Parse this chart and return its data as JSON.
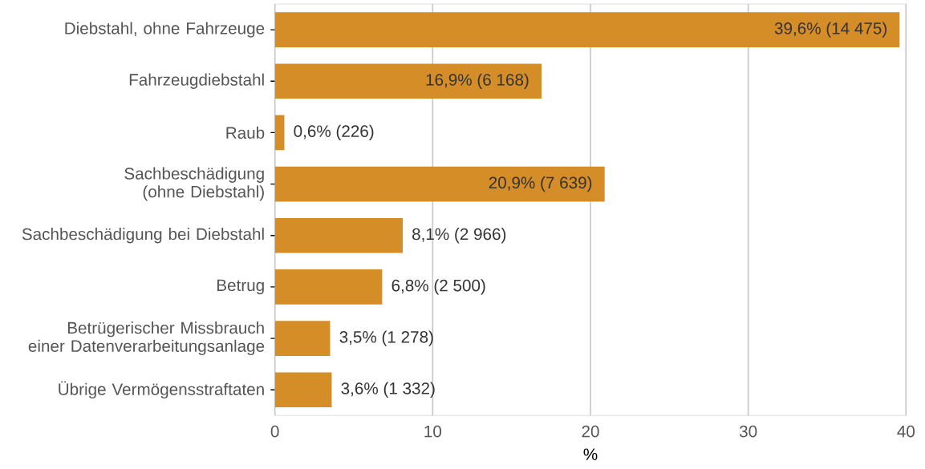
{
  "chart_data": {
    "type": "bar",
    "orientation": "horizontal",
    "xlabel": "%",
    "categories": [
      "Diebstahl, ohne Fahrzeuge",
      "Fahrzeugdiebstahl",
      "Raub",
      "Sachbeschädigung (ohne Diebstahl)",
      "Sachbeschädigung bei Diebstahl",
      "Betrug",
      "Betrügerischer Missbrauch einer Datenverarbeitungsanlage",
      "Übrige Vermögensstraftaten"
    ],
    "values": [
      39.6,
      16.9,
      0.6,
      20.9,
      8.1,
      6.8,
      3.5,
      3.6
    ],
    "value_labels": [
      "39,6% (14 475)",
      "16,9% (6 168)",
      "0,6% (226)",
      "20,9% (7 639)",
      "8,1% (2 966)",
      "6,8% (2 500)",
      "3,5% (1 278)",
      "3,6% (1 332)"
    ],
    "color": "#d58d27",
    "xlim": [
      0,
      40
    ],
    "xticks": [
      0,
      10,
      20,
      30,
      40
    ],
    "grid": "x"
  }
}
